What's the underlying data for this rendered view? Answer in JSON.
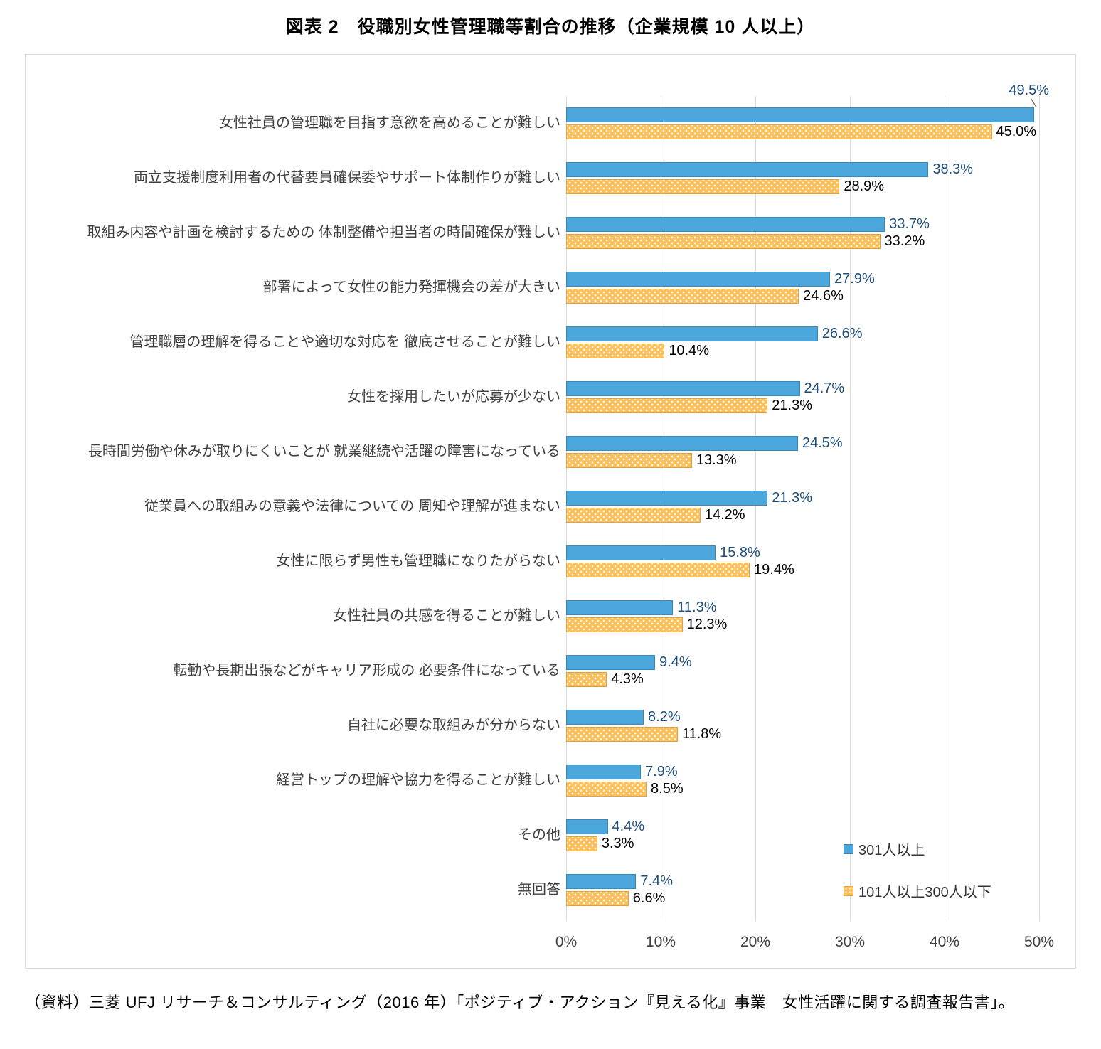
{
  "page": {
    "title": "図表 2　役職別女性管理職等割合の推移（企業規模 10 人以上）",
    "source_note": "（資料）三菱 UFJ リサーチ＆コンサルティング（2016 年）「ポジティブ・アクション『見える化』事業　女性活躍に関する調査報告書」。"
  },
  "chart_data": {
    "type": "bar",
    "orientation": "horizontal",
    "title": "図表 2　役職別女性管理職等割合の推移（企業規模 10 人以上）",
    "categories": [
      "女性社員の管理職を目指す意欲を高めることが難しい",
      "両立支援制度利用者の代替要員確保委やサポート体制作りが難しい",
      "取組み内容や計画を検討するための 体制整備や担当者の時間確保が難しい",
      "部署によって女性の能力発揮機会の差が大きい",
      "管理職層の理解を得ることや適切な対応を 徹底させることが難しい",
      "女性を採用したいが応募が少ない",
      "長時間労働や休みが取りにくいことが 就業継続や活躍の障害になっている",
      "従業員への取組みの意義や法律についての 周知や理解が進まない",
      "女性に限らず男性も管理職になりたがらない",
      "女性社員の共感を得ることが難しい",
      "転勤や長期出張などがキャリア形成の 必要条件になっている",
      "自社に必要な取組みが分からない",
      "経営トップの理解や協力を得ることが難しい",
      "その他",
      "無回答"
    ],
    "series": [
      {
        "name": "301人以上",
        "color": "#4ba6db",
        "values": [
          49.5,
          38.3,
          33.7,
          27.9,
          26.6,
          24.7,
          24.5,
          21.3,
          15.8,
          11.3,
          9.4,
          8.2,
          7.9,
          4.4,
          7.4
        ]
      },
      {
        "name": "101人以上300人以下",
        "color": "#fbbf5a",
        "pattern": "white-dots",
        "values": [
          45.0,
          28.9,
          33.2,
          24.6,
          10.4,
          21.3,
          13.3,
          14.2,
          19.4,
          12.3,
          4.3,
          11.8,
          8.5,
          3.3,
          6.6
        ]
      }
    ],
    "xlim": [
      0,
      50
    ],
    "xticks": [
      "0%",
      "10%",
      "20%",
      "30%",
      "40%",
      "50%"
    ],
    "grid": "vertical",
    "legend_position": "inside-bottom-right",
    "value_labels": "end-of-bar",
    "colors": {
      "value_label_301": "#1f4e79",
      "value_label_101_300": "#000000",
      "grid": "#d9d9d9",
      "box_border": "#d9d9d9",
      "label_text": "#3f3f3f",
      "tick_text": "#404040"
    }
  }
}
